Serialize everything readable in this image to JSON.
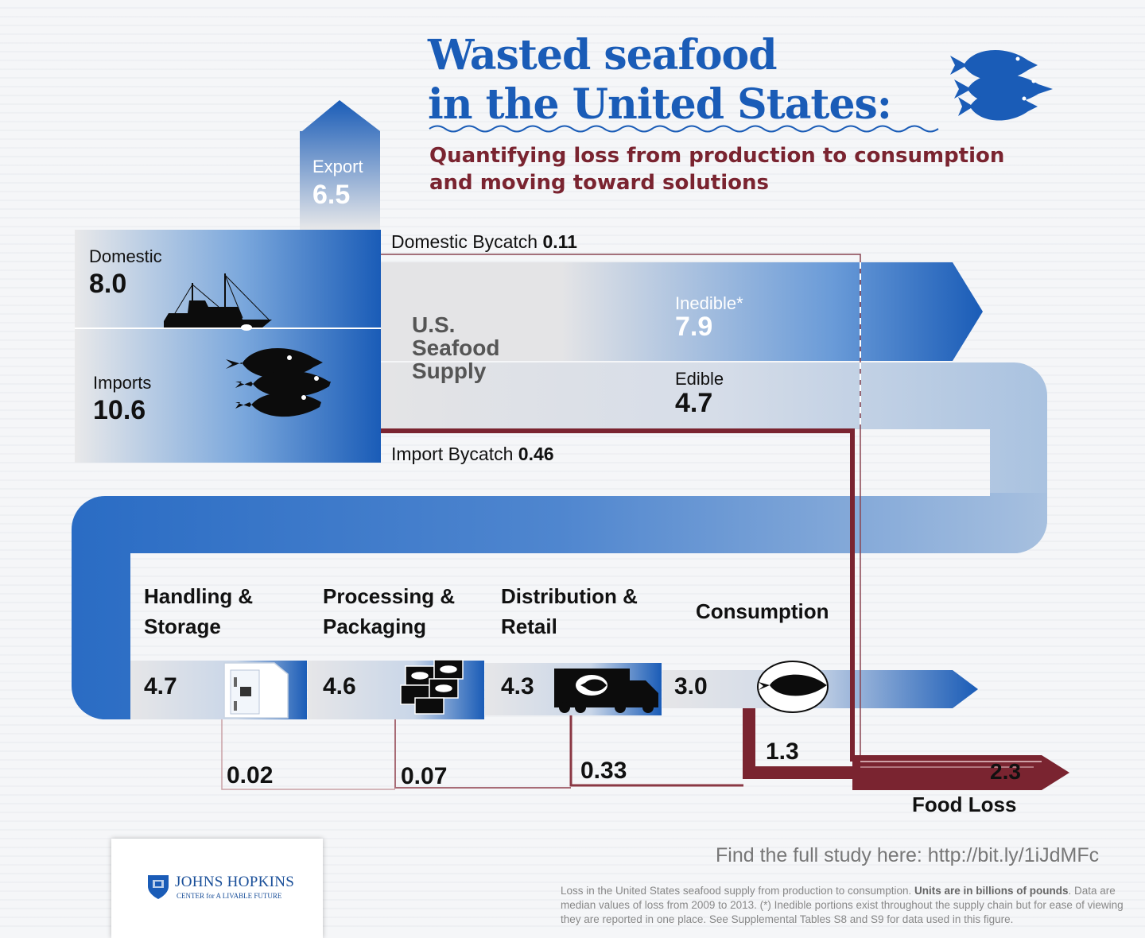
{
  "title": {
    "line1": "Wasted seafood",
    "line2": "in the United States:",
    "subtitle_line1": "Quantifying loss from production to consumption",
    "subtitle_line2": "and moving toward solutions"
  },
  "colors": {
    "blue": "#1a5cb7",
    "dark_blue": "#0f3f8c",
    "maroon": "#7a2430",
    "loss_line": "#8a4450"
  },
  "icons": [
    "fish-school-icon",
    "fishing-boat-icon",
    "fish-icon",
    "freezer-icon",
    "boxes-icon",
    "truck-icon",
    "plate-fish-icon"
  ],
  "export": {
    "label": "Export",
    "value": "6.5"
  },
  "sources": {
    "domestic": {
      "label": "Domestic",
      "value": "8.0"
    },
    "imports": {
      "label": "Imports",
      "value": "10.6"
    }
  },
  "supply": {
    "label_line1": "U.S.",
    "label_line2": "Seafood",
    "label_line3": "Supply"
  },
  "bycatch": {
    "domestic": {
      "label": "Domestic Bycatch",
      "value": "0.11"
    },
    "import": {
      "label": "Import Bycatch",
      "value": "0.46"
    }
  },
  "inedible": {
    "label": "Inedible*",
    "value": "7.9"
  },
  "edible": {
    "label": "Edible",
    "value": "4.7"
  },
  "stages": [
    {
      "line1": "Handling &",
      "line2": "Storage",
      "value": "4.7",
      "loss": "0.02"
    },
    {
      "line1": "Processing &",
      "line2": "Packaging",
      "value": "4.6",
      "loss": "0.07"
    },
    {
      "line1": "Distribution &",
      "line2": "Retail",
      "value": "4.3",
      "loss": "0.33"
    },
    {
      "line1": "Consumption",
      "line2": "",
      "value": "3.0",
      "loss": "1.3"
    }
  ],
  "food_loss": {
    "label": "Food Loss",
    "value": "2.3"
  },
  "footer": {
    "link_text": "Find the full study here: http://bit.ly/1iJdMFc",
    "note_part1": "Loss in the United States seafood supply from production to consumption. ",
    "note_bold": "Units are in billions of pounds",
    "note_part2": ". Data are median values of loss from 2009 to 2013. (*) Inedible portions exist throughout the supply chain but for ease of viewing they are reported in one place. See Supplemental Tables S8 and S9 for data used in this figure.",
    "logo_line1": "JOHNS HOPKINS",
    "logo_line2": "CENTER for A LIVABLE FUTURE"
  }
}
